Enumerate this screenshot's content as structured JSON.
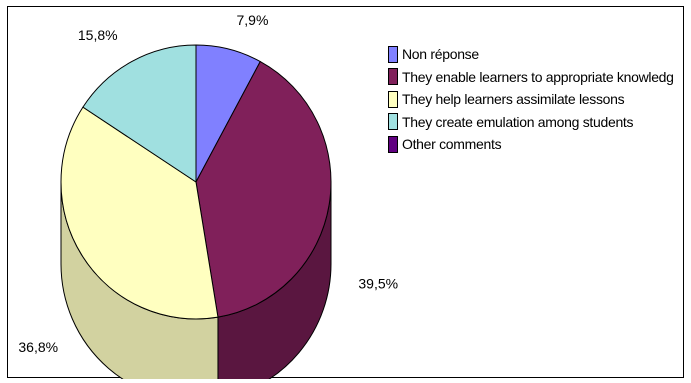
{
  "chart_data": {
    "type": "pie",
    "title": "",
    "slices": [
      {
        "label": "Non réponse",
        "value": 7.9,
        "display": "7,9%",
        "color": "#8080ff",
        "side_color": "#4d4d99"
      },
      {
        "label": "They enable learners to appropriate knowledg",
        "value": 39.5,
        "display": "39,5%",
        "color": "#80205a",
        "side_color": "#5a1640"
      },
      {
        "label": "They help learners assimilate lessons",
        "value": 36.8,
        "display": "36,8%",
        "color": "#ffffc0",
        "side_color": "#d2d2a0"
      },
      {
        "label": "They create emulation among students",
        "value": 15.8,
        "display": "15,8%",
        "color": "#a0e0e0",
        "side_color": "#72a5a5"
      },
      {
        "label": "Other comments",
        "value": 0,
        "display": "",
        "color": "#600080",
        "side_color": "#400055"
      }
    ],
    "legend_position": "right",
    "style": "3d"
  }
}
